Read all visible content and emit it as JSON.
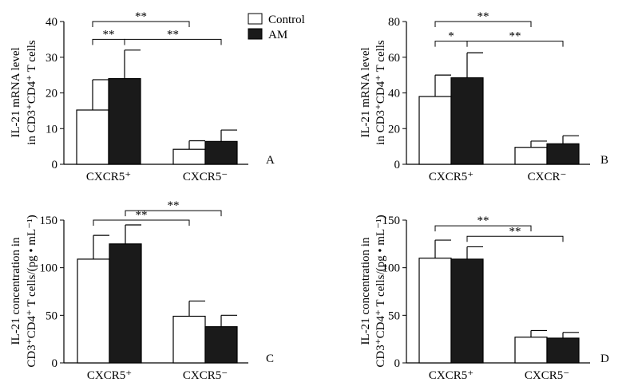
{
  "legend": {
    "items": [
      {
        "label": "Control",
        "color": "#ffffff"
      },
      {
        "label": "AM",
        "color": "#1a1a1a"
      }
    ]
  },
  "chart_data": [
    {
      "type": "bar",
      "panel_letter": "A",
      "ylabel_line1": "IL-21 mRNA level",
      "ylabel_line2": "in CD3⁺CD4⁺ T cells",
      "ylim": [
        0,
        40
      ],
      "yticks": [
        0,
        10,
        20,
        30,
        40
      ],
      "categories": [
        "CXCR5⁺",
        "CXCR5⁻"
      ],
      "series": [
        {
          "name": "Control",
          "values": [
            15.2,
            4.2
          ],
          "errors": [
            8.5,
            2.4
          ]
        },
        {
          "name": "AM",
          "values": [
            24.0,
            6.4
          ],
          "errors": [
            8.0,
            3.2
          ]
        }
      ],
      "brackets": [
        {
          "from": [
            0,
            0
          ],
          "to": [
            0,
            1
          ],
          "label": "**",
          "y": 35
        },
        {
          "from": [
            0,
            0
          ],
          "to": [
            1,
            0
          ],
          "label": "**",
          "y": 40
        },
        {
          "from": [
            0,
            1
          ],
          "to": [
            1,
            1
          ],
          "label": "**",
          "y": 35
        }
      ]
    },
    {
      "type": "bar",
      "panel_letter": "B",
      "ylabel_line1": "IL-21 mRNA level",
      "ylabel_line2": "in CD3⁺CD4⁺ T cells",
      "ylim": [
        0,
        80
      ],
      "yticks": [
        0,
        20,
        40,
        60,
        80
      ],
      "categories": [
        "CXCR5⁺",
        "CXCR⁻"
      ],
      "series": [
        {
          "name": "Control",
          "values": [
            38,
            9.5
          ],
          "errors": [
            12,
            3.5
          ]
        },
        {
          "name": "AM",
          "values": [
            48.5,
            11.5
          ],
          "errors": [
            14,
            4.5
          ]
        }
      ],
      "brackets": [
        {
          "from": [
            0,
            0
          ],
          "to": [
            0,
            1
          ],
          "label": "*",
          "y": 69
        },
        {
          "from": [
            0,
            0
          ],
          "to": [
            1,
            0
          ],
          "label": "**",
          "y": 80
        },
        {
          "from": [
            0,
            1
          ],
          "to": [
            1,
            1
          ],
          "label": "**",
          "y": 69
        }
      ]
    },
    {
      "type": "bar",
      "panel_letter": "C",
      "ylabel_line1": "IL-21 concentration in",
      "ylabel_line2": "CD3⁺CD4⁺ T cells/(pg • mL⁻¹)",
      "ylim": [
        0,
        150
      ],
      "yticks": [
        0,
        50,
        100,
        150
      ],
      "categories": [
        "CXCR5⁺",
        "CXCR5⁻"
      ],
      "series": [
        {
          "name": "Control",
          "values": [
            109,
            49
          ],
          "errors": [
            25,
            16
          ]
        },
        {
          "name": "AM",
          "values": [
            125,
            38
          ],
          "errors": [
            20,
            12
          ]
        }
      ],
      "brackets": [
        {
          "from": [
            0,
            0
          ],
          "to": [
            1,
            0
          ],
          "label": "**",
          "y": 150
        },
        {
          "from": [
            0,
            1
          ],
          "to": [
            1,
            1
          ],
          "label": "**",
          "y": 160
        }
      ]
    },
    {
      "type": "bar",
      "panel_letter": "D",
      "ylabel_line1": "IL-21 concentration in",
      "ylabel_line2": "CD3⁺CD4⁺ T cells/(pg • mL⁻¹)",
      "ylim": [
        0,
        150
      ],
      "yticks": [
        0,
        50,
        100,
        150
      ],
      "categories": [
        "CXCR5⁺",
        "CXCR5⁻"
      ],
      "series": [
        {
          "name": "Control",
          "values": [
            110,
            27
          ],
          "errors": [
            19,
            7
          ]
        },
        {
          "name": "AM",
          "values": [
            109,
            26
          ],
          "errors": [
            13,
            6
          ]
        }
      ],
      "brackets": [
        {
          "from": [
            0,
            0
          ],
          "to": [
            1,
            0
          ],
          "label": "**",
          "y": 144
        },
        {
          "from": [
            0,
            1
          ],
          "to": [
            1,
            1
          ],
          "label": "**",
          "y": 133
        }
      ]
    }
  ]
}
